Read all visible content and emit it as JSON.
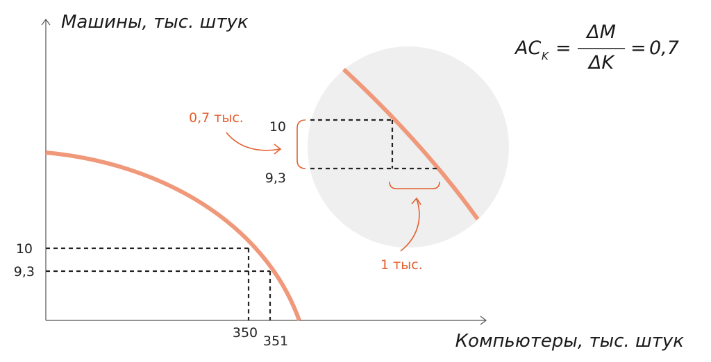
{
  "colors": {
    "curve": "#f0987a",
    "annotation": "#e4602f",
    "zoom_circle": "#efefef",
    "axis": "#555555",
    "dash": "#222222"
  },
  "axes": {
    "y_title": "Машины, тыс. штук",
    "x_title": "Компьютеры, тыс. штук"
  },
  "main_ticks": {
    "y_top": "10",
    "y_bottom": "9,3",
    "x_left": "350",
    "x_right": "351"
  },
  "zoom": {
    "y_top": "10",
    "y_bottom": "9,3",
    "delta_y_label": "0,7 тыс.",
    "delta_x_label": "1 тыс."
  },
  "formula": {
    "lhs": "AC",
    "lhs_sub": "K",
    "eq1": "=",
    "numerator": "ΔM",
    "denominator": "ΔK",
    "eq2": "=",
    "result": "0,7"
  }
}
